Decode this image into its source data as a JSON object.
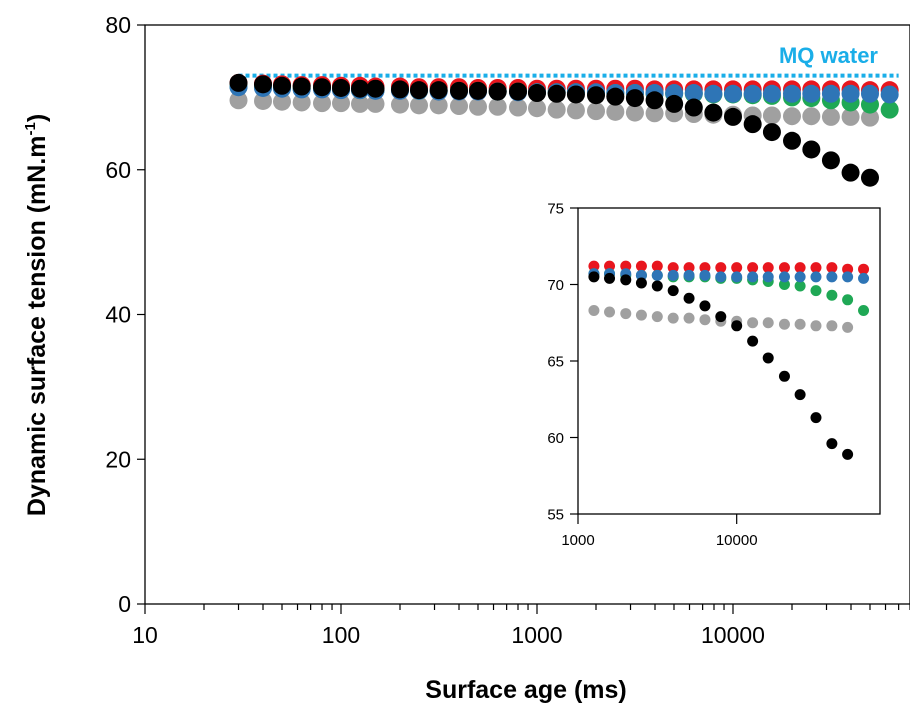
{
  "chart_data": [
    {
      "type": "scatter",
      "xscale": "log",
      "xlim": [
        10,
        80000
      ],
      "ylim": [
        0,
        80
      ],
      "xticks": [
        10,
        100,
        1000,
        10000
      ],
      "xtick_labels": [
        "10",
        "100",
        "1000",
        "10000"
      ],
      "yticks": [
        0,
        20,
        40,
        60,
        80
      ],
      "ytick_labels": [
        "0",
        "20",
        "40",
        "60",
        "80"
      ],
      "xlabel": "Surface age (ms)",
      "ylabel_main": "Dynamic surface tension (mN.m",
      "ylabel_sup": "-1",
      "ylabel_end": ")",
      "grid": false,
      "annotation": {
        "text": "MQ water",
        "color": "#1aaee8"
      },
      "reference_line": {
        "y": 73,
        "x_start": 30,
        "x_end": 70000,
        "color": "#1aaee8",
        "style": "dotted"
      },
      "series": [
        {
          "color": "#a0a0a0",
          "x": [
            30,
            40,
            50,
            63,
            80,
            100,
            125,
            150,
            200,
            250,
            315,
            400,
            500,
            630,
            800,
            1000,
            1260,
            1580,
            2000,
            2510,
            3160,
            3980,
            5010,
            6310,
            7940,
            10000,
            12600,
            15800,
            20000,
            25100,
            31600,
            39800,
            50000
          ],
          "y": [
            69.6,
            69.5,
            69.4,
            69.3,
            69.2,
            69.2,
            69.1,
            69.1,
            69.0,
            68.9,
            68.9,
            68.8,
            68.7,
            68.7,
            68.6,
            68.5,
            68.3,
            68.2,
            68.1,
            68.0,
            67.9,
            67.8,
            67.8,
            67.7,
            67.6,
            67.6,
            67.5,
            67.5,
            67.4,
            67.4,
            67.3,
            67.3,
            67.2
          ]
        },
        {
          "color": "#e8161e",
          "x": [
            30,
            40,
            50,
            63,
            80,
            100,
            125,
            150,
            200,
            250,
            315,
            400,
            500,
            630,
            800,
            1000,
            1260,
            1580,
            2000,
            2510,
            3160,
            3980,
            5010,
            6310,
            7940,
            10000,
            12600,
            15800,
            20000,
            25100,
            31600,
            39800,
            50000,
            63000
          ],
          "y": [
            72.0,
            71.9,
            71.8,
            71.7,
            71.7,
            71.6,
            71.6,
            71.5,
            71.5,
            71.4,
            71.4,
            71.4,
            71.3,
            71.3,
            71.3,
            71.2,
            71.2,
            71.2,
            71.2,
            71.2,
            71.2,
            71.1,
            71.1,
            71.1,
            71.1,
            71.1,
            71.1,
            71.1,
            71.1,
            71.1,
            71.1,
            71.1,
            71.0,
            71.0
          ]
        },
        {
          "color": "#1fa855",
          "x": [
            30,
            40,
            50,
            63,
            80,
            100,
            125,
            150,
            200,
            250,
            315,
            400,
            500,
            630,
            800,
            1000,
            1260,
            1580,
            2000,
            2510,
            3160,
            3980,
            5010,
            6310,
            7940,
            10000,
            12600,
            15800,
            20000,
            25100,
            31600,
            39800,
            50000,
            63000
          ],
          "y": [
            71.5,
            71.4,
            71.3,
            71.2,
            71.2,
            71.1,
            71.0,
            71.0,
            71.0,
            70.9,
            70.9,
            70.9,
            70.9,
            70.8,
            70.8,
            70.7,
            70.7,
            70.7,
            70.6,
            70.6,
            70.6,
            70.5,
            70.5,
            70.5,
            70.4,
            70.4,
            70.3,
            70.2,
            70.0,
            69.9,
            69.6,
            69.3,
            69.0,
            68.3
          ]
        },
        {
          "color": "#2e75b6",
          "x": [
            30,
            40,
            50,
            63,
            80,
            100,
            125,
            150,
            200,
            250,
            315,
            400,
            500,
            630,
            800,
            1000,
            1260,
            1580,
            2000,
            2510,
            3160,
            3980,
            5010,
            6310,
            7940,
            10000,
            12600,
            15800,
            20000,
            25100,
            31600,
            39800,
            50000,
            63000
          ],
          "y": [
            71.4,
            71.3,
            71.2,
            71.1,
            71.1,
            71.0,
            71.0,
            70.9,
            70.9,
            70.9,
            70.8,
            70.8,
            70.8,
            70.8,
            70.7,
            70.7,
            70.7,
            70.7,
            70.7,
            70.6,
            70.6,
            70.6,
            70.6,
            70.6,
            70.5,
            70.5,
            70.5,
            70.5,
            70.5,
            70.5,
            70.5,
            70.5,
            70.5,
            70.4
          ]
        },
        {
          "color": "#000000",
          "x": [
            30,
            40,
            50,
            63,
            80,
            100,
            125,
            150,
            200,
            250,
            315,
            400,
            500,
            630,
            800,
            1000,
            1260,
            1580,
            2000,
            2510,
            3160,
            3980,
            5010,
            6310,
            7940,
            10000,
            12600,
            15800,
            20000,
            25100,
            31600,
            39800,
            50000
          ],
          "y": [
            72.0,
            71.8,
            71.6,
            71.5,
            71.4,
            71.3,
            71.2,
            71.2,
            71.1,
            71.0,
            71.0,
            70.9,
            70.9,
            70.8,
            70.8,
            70.6,
            70.5,
            70.4,
            70.3,
            70.1,
            69.9,
            69.6,
            69.1,
            68.6,
            67.9,
            67.3,
            66.3,
            65.2,
            64.0,
            62.8,
            61.3,
            59.6,
            58.9
          ]
        }
      ]
    },
    {
      "type": "scatter",
      "role": "inset",
      "xscale": "log",
      "xlim": [
        1000,
        80000
      ],
      "ylim": [
        55,
        75
      ],
      "xticks": [
        1000,
        10000
      ],
      "xtick_labels": [
        "1000",
        "10000"
      ],
      "yticks": [
        55,
        60,
        65,
        70,
        75
      ],
      "ytick_labels": [
        "55",
        "60",
        "65",
        "70",
        "75"
      ],
      "xmin_data": 1200,
      "grid": false
    }
  ]
}
